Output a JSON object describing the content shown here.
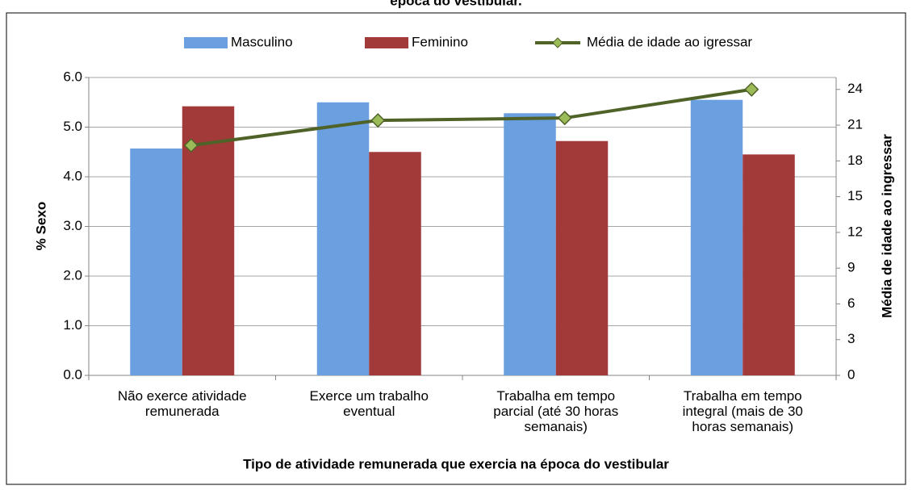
{
  "chart_data": {
    "type": "bar",
    "title": "época do vestibular.",
    "categories": [
      "Não exerce atividade\nremunerada",
      "Exerce um trabalho\neventual",
      "Trabalha em tempo\nparcial (até 30 horas\nsemanais)",
      "Trabalha em tempo\nintegral (mais de 30\nhoras semanais)"
    ],
    "series": [
      {
        "name": "Masculino",
        "color": "#6a9fe0",
        "values": [
          4.57,
          5.5,
          5.28,
          5.55
        ]
      },
      {
        "name": "Feminino",
        "color": "#a33a3a",
        "values": [
          5.42,
          4.5,
          4.72,
          4.45
        ]
      },
      {
        "name": "Média de idade ao igressar",
        "color": "#4f6228",
        "marker_color": "#9bbb59",
        "type": "line",
        "axis": "y2",
        "values": [
          19.3,
          21.4,
          21.6,
          24.0
        ]
      }
    ],
    "ylabel": "% Sexo",
    "y2label": "Média de idade ao ingressar",
    "xlabel": "Tipo de atividade remunerada que exercia na época do vestibular",
    "ylim": [
      0,
      6
    ],
    "yticks": [
      {
        "value": 0,
        "label": "0.0"
      },
      {
        "value": 1,
        "label": "1.0"
      },
      {
        "value": 2,
        "label": "2.0"
      },
      {
        "value": 3,
        "label": "3.0"
      },
      {
        "value": 4,
        "label": "4.0"
      },
      {
        "value": 5,
        "label": "5.0"
      },
      {
        "value": 6,
        "label": "6.0"
      }
    ],
    "y2lim": [
      0,
      25
    ],
    "y2ticks": [
      0,
      3,
      6,
      9,
      12,
      15,
      18,
      21,
      24
    ],
    "legend": "top",
    "grid": true
  }
}
